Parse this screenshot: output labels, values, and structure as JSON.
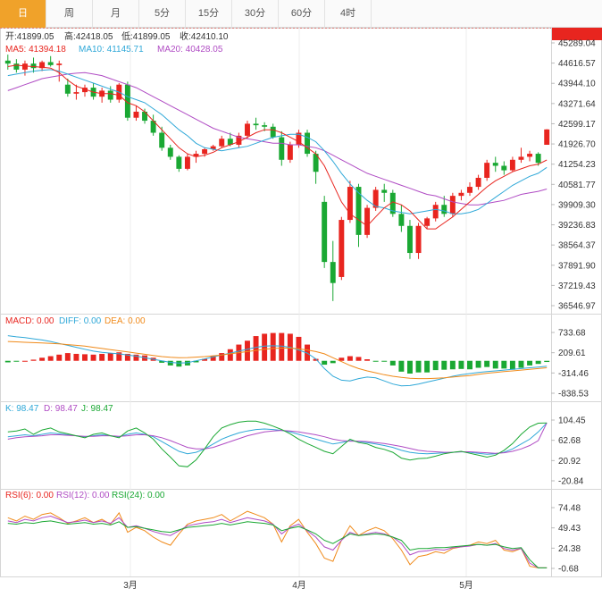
{
  "tabs": [
    {
      "label": "日",
      "active": true
    },
    {
      "label": "周",
      "active": false
    },
    {
      "label": "月",
      "active": false
    },
    {
      "label": "5分",
      "active": false
    },
    {
      "label": "15分",
      "active": false
    },
    {
      "label": "30分",
      "active": false
    },
    {
      "label": "60分",
      "active": false
    },
    {
      "label": "4时",
      "active": false
    }
  ],
  "info": {
    "open": "开:41899.05",
    "high": "高:42418.05",
    "low": "低:41899.05",
    "close": "收:42410.10",
    "ma5": "MA5: 41394.18",
    "ma10": "MA10: 41145.71",
    "ma20": "MA20: 40428.05"
  },
  "indicators": {
    "macd": "MACD: 0.00",
    "diff": "DIFF: 0.00",
    "dea": "DEA: 0.00",
    "k": "K: 98.47",
    "d": "D: 98.47",
    "j": "J: 98.47",
    "rsi6": "RSI(6): 0.00",
    "rsi12": "RSI(12): 0.00",
    "rsi24": "RSI(24): 0.00"
  },
  "colors": {
    "up": "#e8251f",
    "down": "#1aa833",
    "ma5": "#e8251f",
    "ma10": "#2fa8d8",
    "ma20": "#b04cc4",
    "dea": "#f08a1a",
    "tab_active": "#f0a22a"
  },
  "chart_data": {
    "type": "candlestick",
    "last_price": "42410.10",
    "x_labels": [
      "3月",
      "4月",
      "5月"
    ],
    "main": {
      "yticks": [
        "45289.04",
        "44616.57",
        "43944.10",
        "43271.64",
        "42599.17",
        "41926.70",
        "41254.23",
        "40581.77",
        "39909.30",
        "39236.83",
        "38564.37",
        "37891.90",
        "37219.43",
        "36546.97"
      ],
      "ylim": [
        36546.97,
        45289.04
      ],
      "candles": [
        [
          44700,
          44900,
          44400,
          44600
        ],
        [
          44600,
          44750,
          44300,
          44400
        ],
        [
          44400,
          44700,
          44200,
          44600
        ],
        [
          44600,
          44800,
          44300,
          44450
        ],
        [
          44450,
          44700,
          44350,
          44650
        ],
        [
          44650,
          44850,
          44500,
          44550
        ],
        [
          44550,
          44700,
          44000,
          44600
        ],
        [
          43900,
          44100,
          43500,
          43600
        ],
        [
          43600,
          43900,
          43400,
          43650
        ],
        [
          43650,
          43900,
          43500,
          43800
        ],
        [
          43800,
          43950,
          43400,
          43500
        ],
        [
          43500,
          43800,
          43300,
          43700
        ],
        [
          43700,
          43850,
          43300,
          43400
        ],
        [
          43400,
          43950,
          43300,
          43900
        ],
        [
          43900,
          44000,
          42700,
          42800
        ],
        [
          42800,
          43200,
          42700,
          43000
        ],
        [
          43000,
          43100,
          42600,
          42700
        ],
        [
          42700,
          42900,
          42200,
          42300
        ],
        [
          42300,
          42500,
          41700,
          41800
        ],
        [
          41800,
          41900,
          41400,
          41500
        ],
        [
          41500,
          41550,
          41000,
          41100
        ],
        [
          41100,
          41600,
          41050,
          41500
        ],
        [
          41500,
          41700,
          41300,
          41600
        ],
        [
          41600,
          41800,
          41500,
          41750
        ],
        [
          41750,
          41900,
          41700,
          41850
        ],
        [
          41850,
          42200,
          41800,
          42100
        ],
        [
          42100,
          42300,
          41850,
          41900
        ],
        [
          41900,
          42300,
          41800,
          42200
        ],
        [
          42200,
          42700,
          42100,
          42600
        ],
        [
          42600,
          42800,
          42400,
          42550
        ],
        [
          42550,
          42650,
          42350,
          42500
        ],
        [
          42500,
          42600,
          42100,
          42150
        ],
        [
          42150,
          42350,
          41200,
          41400
        ],
        [
          41400,
          42000,
          41300,
          41900
        ],
        [
          41900,
          42400,
          41800,
          42300
        ],
        [
          42300,
          42400,
          41500,
          41600
        ],
        [
          41600,
          41700,
          40600,
          41000
        ],
        [
          40000,
          40200,
          37800,
          38000
        ],
        [
          38000,
          38700,
          36700,
          37300
        ],
        [
          37500,
          39500,
          37400,
          39400
        ],
        [
          39400,
          40700,
          39300,
          40500
        ],
        [
          40500,
          40600,
          38500,
          38900
        ],
        [
          38900,
          39900,
          38800,
          39800
        ],
        [
          39800,
          40500,
          39700,
          40400
        ],
        [
          40400,
          40600,
          40000,
          40300
        ],
        [
          40300,
          40400,
          39500,
          39600
        ],
        [
          39600,
          39900,
          39000,
          39200
        ],
        [
          39200,
          39400,
          38100,
          38300
        ],
        [
          38300,
          39300,
          38100,
          39200
        ],
        [
          39200,
          39500,
          39100,
          39450
        ],
        [
          39450,
          40000,
          39350,
          39900
        ],
        [
          39900,
          40200,
          39500,
          39600
        ],
        [
          39600,
          40300,
          39500,
          40200
        ],
        [
          40200,
          40400,
          40050,
          40300
        ],
        [
          40300,
          40650,
          40200,
          40500
        ],
        [
          40500,
          40900,
          40400,
          40800
        ],
        [
          40800,
          41400,
          40700,
          41300
        ],
        [
          41300,
          41500,
          41000,
          41200
        ],
        [
          41200,
          41350,
          40900,
          41050
        ],
        [
          41050,
          41500,
          41000,
          41400
        ],
        [
          41400,
          41800,
          41300,
          41500
        ],
        [
          41500,
          41700,
          41350,
          41600
        ],
        [
          41600,
          41650,
          41200,
          41300
        ],
        [
          41899.05,
          42418.05,
          41899.05,
          42410.1
        ]
      ],
      "ma5": [
        44500,
        44550,
        44520,
        44500,
        44480,
        44450,
        44300,
        44050,
        43850,
        43750,
        43650,
        43600,
        43600,
        43550,
        43300,
        43200,
        43000,
        42700,
        42400,
        42100,
        41800,
        41600,
        41500,
        41550,
        41650,
        41800,
        41900,
        42000,
        42150,
        42300,
        42400,
        42400,
        42300,
        42150,
        42000,
        41800,
        41600,
        41200,
        40600,
        40000,
        39600,
        39400,
        39200,
        39500,
        39800,
        40000,
        39900,
        39700,
        39400,
        39100,
        39100,
        39300,
        39500,
        39750,
        40000,
        40250,
        40500,
        40700,
        40850,
        41000,
        41100,
        41200,
        41250,
        41394.18
      ],
      "ma10": [
        44200,
        44250,
        44300,
        44350,
        44380,
        44400,
        44350,
        44250,
        44150,
        44050,
        43950,
        43850,
        43750,
        43650,
        43500,
        43400,
        43300,
        43100,
        42900,
        42650,
        42400,
        42200,
        41950,
        41800,
        41750,
        41700,
        41750,
        41800,
        41850,
        41950,
        42050,
        42150,
        42200,
        42250,
        42250,
        42150,
        42000,
        41700,
        41350,
        40950,
        40600,
        40300,
        40050,
        39850,
        39800,
        39700,
        39650,
        39600,
        39650,
        39700,
        39750,
        39700,
        39600,
        39600,
        39650,
        39750,
        39950,
        40150,
        40350,
        40550,
        40700,
        40850,
        40950,
        41145.71
      ],
      "ma20": [
        43700,
        43800,
        43900,
        44000,
        44100,
        44150,
        44200,
        44250,
        44280,
        44300,
        44250,
        44200,
        44100,
        44000,
        43900,
        43800,
        43650,
        43500,
        43350,
        43200,
        43050,
        42900,
        42750,
        42600,
        42450,
        42350,
        42250,
        42150,
        42100,
        42050,
        42000,
        41950,
        41950,
        41900,
        41900,
        41850,
        41800,
        41700,
        41550,
        41400,
        41250,
        41100,
        40950,
        40850,
        40750,
        40650,
        40550,
        40450,
        40350,
        40250,
        40200,
        40100,
        40000,
        39950,
        39900,
        39900,
        39950,
        40000,
        40050,
        40150,
        40250,
        40300,
        40350,
        40428.05
      ]
    },
    "macd": {
      "yticks": [
        "733.68",
        "209.61",
        "-314.46",
        "-838.53"
      ],
      "ylim": [
        -838.53,
        733.68
      ],
      "hist": [
        -40,
        -20,
        0,
        30,
        80,
        120,
        160,
        200,
        180,
        170,
        160,
        180,
        200,
        220,
        180,
        160,
        140,
        80,
        -50,
        -120,
        -150,
        -120,
        -40,
        50,
        120,
        200,
        300,
        420,
        520,
        640,
        700,
        720,
        720,
        700,
        620,
        420,
        50,
        -100,
        -60,
        80,
        120,
        100,
        40,
        -20,
        -20,
        -120,
        -280,
        -330,
        -300,
        -300,
        -240,
        -230,
        -220,
        -210,
        -220,
        -180,
        -160,
        -200,
        -200,
        -230,
        -180,
        -120,
        -80,
        -30
      ],
      "diff": [
        650,
        620,
        600,
        570,
        540,
        500,
        450,
        400,
        350,
        300,
        250,
        220,
        200,
        180,
        150,
        120,
        80,
        40,
        0,
        -40,
        -60,
        -50,
        0,
        50,
        100,
        150,
        200,
        250,
        300,
        350,
        380,
        390,
        380,
        350,
        280,
        200,
        50,
        -200,
        -400,
        -500,
        -520,
        -460,
        -420,
        -440,
        -520,
        -600,
        -650,
        -640,
        -600,
        -550,
        -500,
        -450,
        -400,
        -360,
        -330,
        -300,
        -280,
        -260,
        -240,
        -220,
        -200,
        -180,
        -160,
        -140
      ],
      "dea": [
        500,
        490,
        480,
        470,
        460,
        450,
        440,
        420,
        400,
        380,
        350,
        320,
        290,
        260,
        230,
        200,
        170,
        140,
        110,
        90,
        80,
        85,
        95,
        110,
        130,
        150,
        180,
        210,
        240,
        270,
        300,
        320,
        330,
        330,
        310,
        280,
        240,
        180,
        80,
        -20,
        -120,
        -200,
        -260,
        -310,
        -360,
        -400,
        -430,
        -450,
        -460,
        -460,
        -450,
        -440,
        -420,
        -400,
        -380,
        -350,
        -320,
        -300,
        -280,
        -260,
        -240,
        -220,
        -200,
        -180
      ]
    },
    "kdj": {
      "yticks": [
        "104.45",
        "62.68",
        "20.92",
        "-20.84"
      ],
      "ylim": [
        -20.84,
        104.45
      ],
      "k": [
        70,
        72,
        74,
        72,
        75,
        78,
        76,
        74,
        72,
        70,
        72,
        74,
        72,
        70,
        75,
        78,
        75,
        70,
        60,
        50,
        40,
        35,
        38,
        45,
        55,
        65,
        72,
        78,
        82,
        85,
        86,
        85,
        83,
        80,
        75,
        70,
        65,
        60,
        55,
        58,
        62,
        60,
        58,
        55,
        52,
        48,
        42,
        38,
        36,
        35,
        36,
        37,
        38,
        39,
        38,
        36,
        34,
        35,
        38,
        45,
        55,
        65,
        80,
        98.47
      ],
      "d": [
        65,
        68,
        70,
        71,
        72,
        74,
        74,
        73,
        72,
        71,
        71,
        72,
        72,
        71,
        72,
        74,
        74,
        72,
        68,
        62,
        55,
        48,
        45,
        45,
        48,
        54,
        60,
        66,
        72,
        76,
        80,
        82,
        83,
        82,
        80,
        77,
        74,
        70,
        65,
        62,
        61,
        61,
        60,
        58,
        56,
        53,
        50,
        46,
        42,
        40,
        39,
        38,
        38,
        39,
        39,
        38,
        37,
        36,
        37,
        40,
        45,
        52,
        62,
        98.47
      ],
      "j": [
        80,
        82,
        86,
        75,
        84,
        88,
        80,
        76,
        72,
        68,
        75,
        78,
        72,
        68,
        82,
        88,
        78,
        65,
        45,
        28,
        10,
        8,
        22,
        45,
        70,
        88,
        95,
        100,
        102,
        102,
        98,
        92,
        85,
        76,
        65,
        56,
        48,
        40,
        35,
        50,
        65,
        58,
        55,
        48,
        44,
        38,
        26,
        22,
        25,
        26,
        30,
        35,
        38,
        40,
        36,
        32,
        28,
        32,
        42,
        56,
        75,
        90,
        98,
        98.47
      ]
    },
    "rsi": {
      "yticks": [
        "74.48",
        "49.43",
        "24.38",
        "-0.68"
      ],
      "ylim": [
        -0.68,
        74.48
      ],
      "rsi6": [
        62,
        58,
        64,
        60,
        66,
        68,
        62,
        55,
        58,
        62,
        56,
        60,
        54,
        68,
        44,
        50,
        46,
        38,
        32,
        28,
        42,
        54,
        58,
        60,
        62,
        66,
        58,
        64,
        70,
        66,
        62,
        54,
        32,
        52,
        60,
        44,
        30,
        12,
        8,
        34,
        52,
        40,
        46,
        50,
        46,
        36,
        22,
        4,
        14,
        16,
        20,
        18,
        24,
        26,
        28,
        32,
        30,
        34,
        22,
        20,
        24,
        2,
        0,
        0
      ],
      "rsi12": [
        58,
        56,
        60,
        58,
        62,
        64,
        60,
        56,
        57,
        59,
        56,
        58,
        55,
        62,
        50,
        52,
        49,
        45,
        42,
        40,
        46,
        52,
        54,
        56,
        57,
        60,
        56,
        59,
        62,
        60,
        58,
        54,
        42,
        50,
        54,
        46,
        38,
        26,
        22,
        34,
        44,
        40,
        42,
        44,
        42,
        38,
        30,
        16,
        20,
        21,
        23,
        22,
        25,
        26,
        27,
        29,
        28,
        30,
        24,
        22,
        24,
        6,
        0,
        0
      ],
      "rsi24": [
        55,
        54,
        56,
        55,
        57,
        58,
        56,
        54,
        55,
        56,
        54,
        55,
        53,
        57,
        50,
        51,
        49,
        47,
        45,
        44,
        47,
        50,
        51,
        52,
        53,
        55,
        53,
        55,
        57,
        56,
        55,
        53,
        46,
        49,
        51,
        47,
        42,
        34,
        30,
        36,
        42,
        40,
        41,
        42,
        41,
        38,
        34,
        22,
        24,
        24,
        25,
        25,
        26,
        27,
        28,
        29,
        28,
        29,
        26,
        24,
        25,
        10,
        0,
        0
      ]
    }
  }
}
